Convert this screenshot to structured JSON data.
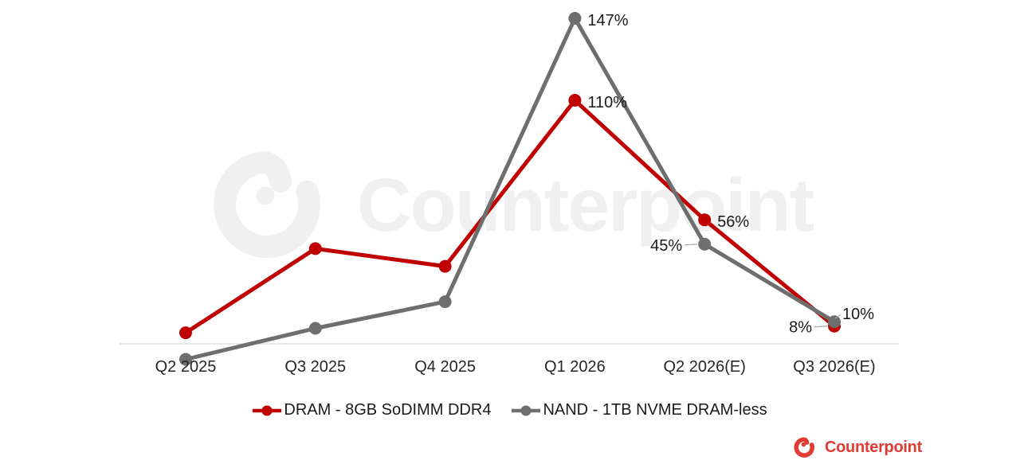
{
  "watermark": {
    "text": "Counterpoint"
  },
  "footer_logo": {
    "text": "Counterpoint",
    "color": "#E23B33"
  },
  "chart_data": {
    "type": "line",
    "title": "",
    "xlabel": "",
    "ylabel": "",
    "categories": [
      "Q2 2025",
      "Q3 2025",
      "Q4 2025",
      "Q1 2026",
      "Q2 2026(E)",
      "Q3 2026(E)"
    ],
    "series": [
      {
        "name": "DRAM - 8GB SoDIMM DDR4",
        "color": "#C00000",
        "values": [
          5,
          43,
          35,
          110,
          56,
          8
        ],
        "data_labels": [
          null,
          null,
          null,
          "110%",
          "56%",
          "8%"
        ],
        "label_positions": [
          null,
          null,
          null,
          "right",
          "right",
          "left"
        ]
      },
      {
        "name": "NAND - 1TB NVME DRAM-less",
        "color": "#6E6E6E",
        "values": [
          -7,
          7,
          19,
          147,
          45,
          10
        ],
        "data_labels": [
          null,
          null,
          null,
          "147%",
          "45%",
          "10%"
        ],
        "label_positions": [
          null,
          null,
          null,
          "right",
          "left",
          "upright"
        ]
      }
    ],
    "ylim": [
      -10,
      150
    ],
    "grid": false,
    "legend_position": "bottom",
    "axis_color": "#D9D9D9",
    "leader_line_color": "#A6A6A6",
    "data_label_color": "#1A1A1A",
    "axis_label_color": "#262626",
    "watermark_color": "#F0F0F0"
  }
}
